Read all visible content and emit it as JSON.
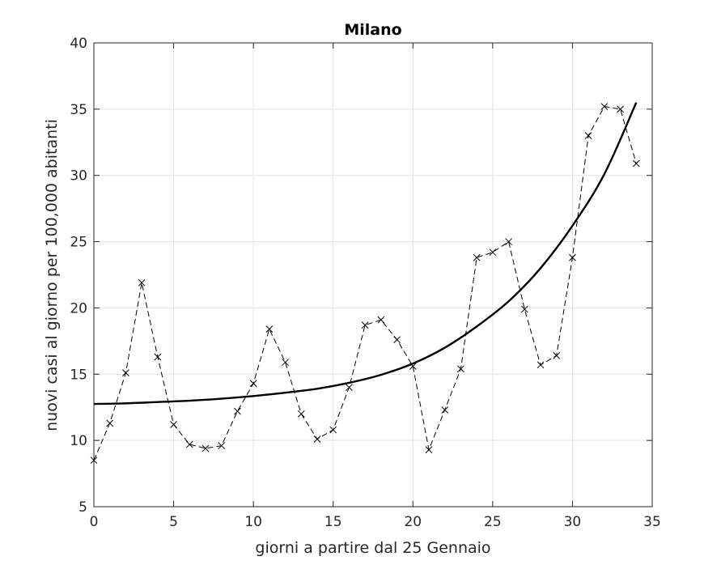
{
  "chart_data": {
    "type": "line",
    "title": "Milano",
    "xlabel": "giorni a partire dal 25 Gennaio",
    "ylabel": "nuovi casi al giorno per 100,000 abitanti",
    "xlim": [
      0,
      35
    ],
    "ylim": [
      5,
      40
    ],
    "xticks": [
      0,
      5,
      10,
      15,
      20,
      25,
      30,
      35
    ],
    "yticks": [
      5,
      10,
      15,
      20,
      25,
      30,
      35,
      40
    ],
    "grid": true,
    "series": [
      {
        "style": "dashed-x-markers",
        "color": "#000000",
        "x": [
          0,
          1,
          2,
          3,
          4,
          5,
          6,
          7,
          8,
          9,
          10,
          11,
          12,
          13,
          14,
          15,
          16,
          17,
          18,
          19,
          20,
          21,
          22,
          23,
          24,
          25,
          26,
          27,
          28,
          29,
          30,
          31,
          32,
          33,
          34
        ],
        "y": [
          8.5,
          11.3,
          15.1,
          21.9,
          16.3,
          11.2,
          9.7,
          9.4,
          9.6,
          12.2,
          14.3,
          18.4,
          15.9,
          12.0,
          10.1,
          10.8,
          14.0,
          18.7,
          19.1,
          17.6,
          15.6,
          9.3,
          12.3,
          15.4,
          23.8,
          24.2,
          25.0,
          19.9,
          15.7,
          16.4,
          23.8,
          33.0,
          35.2,
          35.0,
          30.9
        ]
      },
      {
        "style": "solid-fit",
        "color": "#000000",
        "x": [
          0,
          2,
          4,
          6,
          8,
          10,
          12,
          14,
          16,
          18,
          20,
          22,
          24,
          26,
          28,
          30,
          32,
          34
        ],
        "y": [
          12.75,
          12.8,
          12.9,
          13.0,
          13.15,
          13.35,
          13.6,
          13.9,
          14.35,
          14.95,
          15.8,
          17.0,
          18.6,
          20.5,
          23.0,
          26.2,
          30.1,
          35.5
        ]
      }
    ]
  }
}
